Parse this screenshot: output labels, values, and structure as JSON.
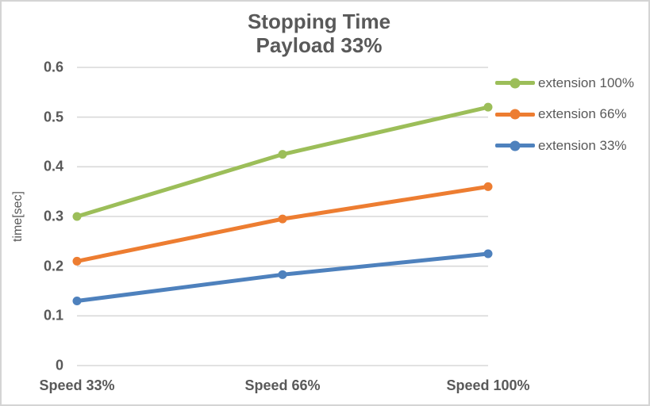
{
  "chart_data": {
    "type": "line",
    "title": "Stopping Time",
    "subtitle": "Payload 33%",
    "ylabel": "time[sec]",
    "xlabel": "",
    "categories": [
      "Speed 33%",
      "Speed 66%",
      "Speed 100%"
    ],
    "series": [
      {
        "name": "extension 100%",
        "color": "#9CBE59",
        "values": [
          0.3,
          0.425,
          0.52
        ]
      },
      {
        "name": "extension 66%",
        "color": "#ED7D31",
        "values": [
          0.21,
          0.295,
          0.36
        ]
      },
      {
        "name": "extension 33%",
        "color": "#4E81BD",
        "values": [
          0.13,
          0.183,
          0.225
        ]
      }
    ],
    "ylim": [
      0,
      0.6
    ],
    "ytick_step": 0.1,
    "ytick_labels": [
      "0",
      "0.1",
      "0.2",
      "0.3",
      "0.4",
      "0.5",
      "0.6"
    ],
    "grid": "horizontal",
    "legend_position": "right",
    "colors": {
      "text": "#595959",
      "gridline": "#D9D9D9",
      "border": "#D4D4D4",
      "background": "#FFFFFF"
    }
  }
}
